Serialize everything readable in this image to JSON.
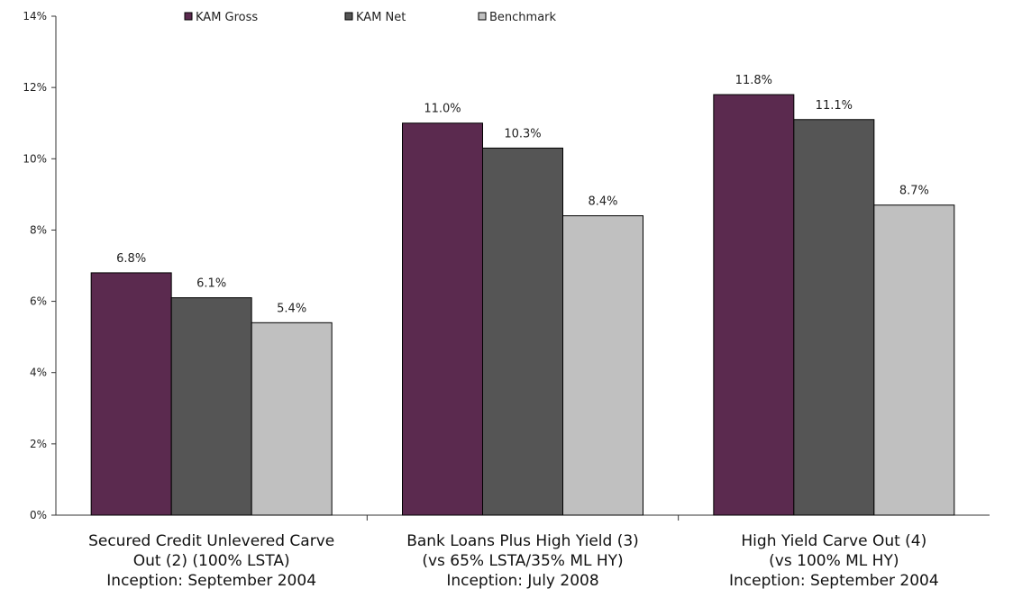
{
  "chart_data": {
    "type": "bar",
    "title": "",
    "xlabel": "",
    "ylabel": "",
    "ylim": [
      0,
      14
    ],
    "y_ticks": [
      0,
      2,
      4,
      6,
      8,
      10,
      12,
      14
    ],
    "y_tick_labels": [
      "0%",
      "2%",
      "4%",
      "6%",
      "8%",
      "10%",
      "12%",
      "14%"
    ],
    "grid": false,
    "legend_position": "top",
    "categories": [
      [
        "Secured Credit Unlevered Carve",
        "Out (2) (100% LSTA)",
        "Inception: September 2004"
      ],
      [
        "Bank Loans Plus High Yield (3)",
        "(vs 65% LSTA/35% ML HY)",
        "Inception: July 2008"
      ],
      [
        "High Yield Carve Out (4)",
        "(vs 100% ML HY)",
        "Inception: September 2004"
      ]
    ],
    "series": [
      {
        "name": "KAM Gross",
        "color": "#5b2a4f",
        "values": [
          6.8,
          11.0,
          11.8
        ],
        "labels": [
          "6.8%",
          "11.0%",
          "11.8%"
        ]
      },
      {
        "name": "KAM Net",
        "color": "#555555",
        "values": [
          6.1,
          10.3,
          11.1
        ],
        "labels": [
          "6.1%",
          "10.3%",
          "11.1%"
        ]
      },
      {
        "name": "Benchmark",
        "color": "#c0c0c0",
        "values": [
          5.4,
          8.4,
          8.7
        ],
        "labels": [
          "5.4%",
          "8.4%",
          "8.7%"
        ]
      }
    ]
  }
}
